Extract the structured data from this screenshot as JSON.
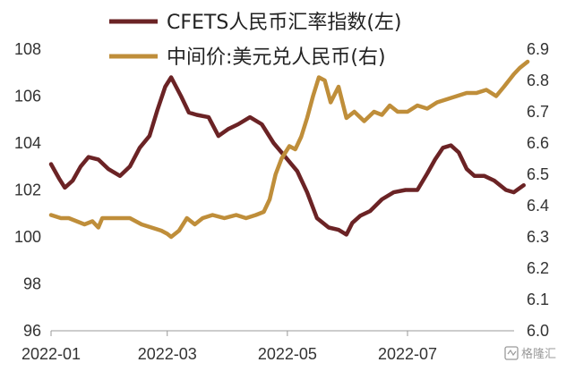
{
  "chart_data": {
    "type": "line",
    "x_tick_labels": [
      "2022-01",
      "2022-03",
      "2022-05",
      "2022-07"
    ],
    "y_left": {
      "ticks": [
        96,
        98,
        100,
        102,
        104,
        106,
        108
      ],
      "ylim": [
        96,
        108
      ]
    },
    "y_right": {
      "ticks": [
        "6.0",
        "6.1",
        "6.2",
        "6.3",
        "6.4",
        "6.5",
        "6.6",
        "6.7",
        "6.8",
        "6.9"
      ],
      "ylim": [
        6.0,
        6.9
      ]
    },
    "grid": false,
    "legend_position": "top",
    "series": [
      {
        "name": "CFETS人民币汇率指数(左)",
        "axis": "left",
        "color": "#6b2325",
        "points": [
          [
            "2022-01-01",
            103.1
          ],
          [
            "2022-01-05",
            102.5
          ],
          [
            "2022-01-08",
            102.1
          ],
          [
            "2022-01-12",
            102.4
          ],
          [
            "2022-01-16",
            103.0
          ],
          [
            "2022-01-20",
            103.4
          ],
          [
            "2022-01-25",
            103.3
          ],
          [
            "2022-01-30",
            102.9
          ],
          [
            "2022-02-05",
            102.6
          ],
          [
            "2022-02-10",
            103.0
          ],
          [
            "2022-02-15",
            103.8
          ],
          [
            "2022-02-20",
            104.3
          ],
          [
            "2022-02-24",
            105.4
          ],
          [
            "2022-02-28",
            106.4
          ],
          [
            "2022-03-03",
            106.8
          ],
          [
            "2022-03-08",
            106.0
          ],
          [
            "2022-03-12",
            105.3
          ],
          [
            "2022-03-16",
            105.2
          ],
          [
            "2022-03-22",
            105.1
          ],
          [
            "2022-03-27",
            104.3
          ],
          [
            "2022-04-01",
            104.6
          ],
          [
            "2022-04-06",
            104.8
          ],
          [
            "2022-04-12",
            105.1
          ],
          [
            "2022-04-18",
            104.8
          ],
          [
            "2022-04-24",
            104.0
          ],
          [
            "2022-04-30",
            103.4
          ],
          [
            "2022-05-06",
            102.8
          ],
          [
            "2022-05-11",
            101.9
          ],
          [
            "2022-05-16",
            100.8
          ],
          [
            "2022-05-22",
            100.4
          ],
          [
            "2022-05-27",
            100.3
          ],
          [
            "2022-05-31",
            100.1
          ],
          [
            "2022-06-03",
            100.6
          ],
          [
            "2022-06-07",
            100.9
          ],
          [
            "2022-06-12",
            101.1
          ],
          [
            "2022-06-18",
            101.6
          ],
          [
            "2022-06-24",
            101.9
          ],
          [
            "2022-06-30",
            102.0
          ],
          [
            "2022-07-06",
            102.0
          ],
          [
            "2022-07-11",
            102.7
          ],
          [
            "2022-07-15",
            103.3
          ],
          [
            "2022-07-19",
            103.8
          ],
          [
            "2022-07-23",
            103.9
          ],
          [
            "2022-07-27",
            103.6
          ],
          [
            "2022-07-31",
            102.9
          ],
          [
            "2022-08-04",
            102.6
          ],
          [
            "2022-08-09",
            102.6
          ],
          [
            "2022-08-14",
            102.4
          ],
          [
            "2022-08-20",
            102.0
          ],
          [
            "2022-08-24",
            101.9
          ],
          [
            "2022-08-29",
            102.2
          ]
        ]
      },
      {
        "name": "中间价:美元兑人民币(右)",
        "axis": "right",
        "color": "#bf8e3a",
        "points": [
          [
            "2022-01-01",
            6.37
          ],
          [
            "2022-01-06",
            6.36
          ],
          [
            "2022-01-10",
            6.36
          ],
          [
            "2022-01-14",
            6.35
          ],
          [
            "2022-01-18",
            6.34
          ],
          [
            "2022-01-22",
            6.35
          ],
          [
            "2022-01-25",
            6.33
          ],
          [
            "2022-01-27",
            6.36
          ],
          [
            "2022-02-03",
            6.36
          ],
          [
            "2022-02-10",
            6.36
          ],
          [
            "2022-02-16",
            6.34
          ],
          [
            "2022-02-21",
            6.33
          ],
          [
            "2022-02-26",
            6.32
          ],
          [
            "2022-03-01",
            6.31
          ],
          [
            "2022-03-03",
            6.3
          ],
          [
            "2022-03-07",
            6.32
          ],
          [
            "2022-03-11",
            6.36
          ],
          [
            "2022-03-15",
            6.34
          ],
          [
            "2022-03-19",
            6.36
          ],
          [
            "2022-03-24",
            6.37
          ],
          [
            "2022-03-30",
            6.36
          ],
          [
            "2022-04-05",
            6.37
          ],
          [
            "2022-04-10",
            6.36
          ],
          [
            "2022-04-15",
            6.37
          ],
          [
            "2022-04-19",
            6.38
          ],
          [
            "2022-04-22",
            6.42
          ],
          [
            "2022-04-25",
            6.5
          ],
          [
            "2022-04-28",
            6.55
          ],
          [
            "2022-05-02",
            6.59
          ],
          [
            "2022-05-05",
            6.58
          ],
          [
            "2022-05-08",
            6.62
          ],
          [
            "2022-05-11",
            6.68
          ],
          [
            "2022-05-14",
            6.75
          ],
          [
            "2022-05-17",
            6.81
          ],
          [
            "2022-05-20",
            6.8
          ],
          [
            "2022-05-23",
            6.73
          ],
          [
            "2022-05-27",
            6.78
          ],
          [
            "2022-05-31",
            6.68
          ],
          [
            "2022-06-04",
            6.7
          ],
          [
            "2022-06-09",
            6.67
          ],
          [
            "2022-06-14",
            6.7
          ],
          [
            "2022-06-18",
            6.69
          ],
          [
            "2022-06-22",
            6.72
          ],
          [
            "2022-06-26",
            6.7
          ],
          [
            "2022-07-01",
            6.7
          ],
          [
            "2022-07-06",
            6.72
          ],
          [
            "2022-07-11",
            6.71
          ],
          [
            "2022-07-16",
            6.73
          ],
          [
            "2022-07-21",
            6.74
          ],
          [
            "2022-07-26",
            6.75
          ],
          [
            "2022-07-31",
            6.76
          ],
          [
            "2022-08-05",
            6.76
          ],
          [
            "2022-08-10",
            6.77
          ],
          [
            "2022-08-15",
            6.75
          ],
          [
            "2022-08-19",
            6.78
          ],
          [
            "2022-08-24",
            6.82
          ],
          [
            "2022-08-27",
            6.84
          ],
          [
            "2022-08-31",
            6.86
          ]
        ]
      }
    ]
  },
  "watermark": "格隆汇"
}
